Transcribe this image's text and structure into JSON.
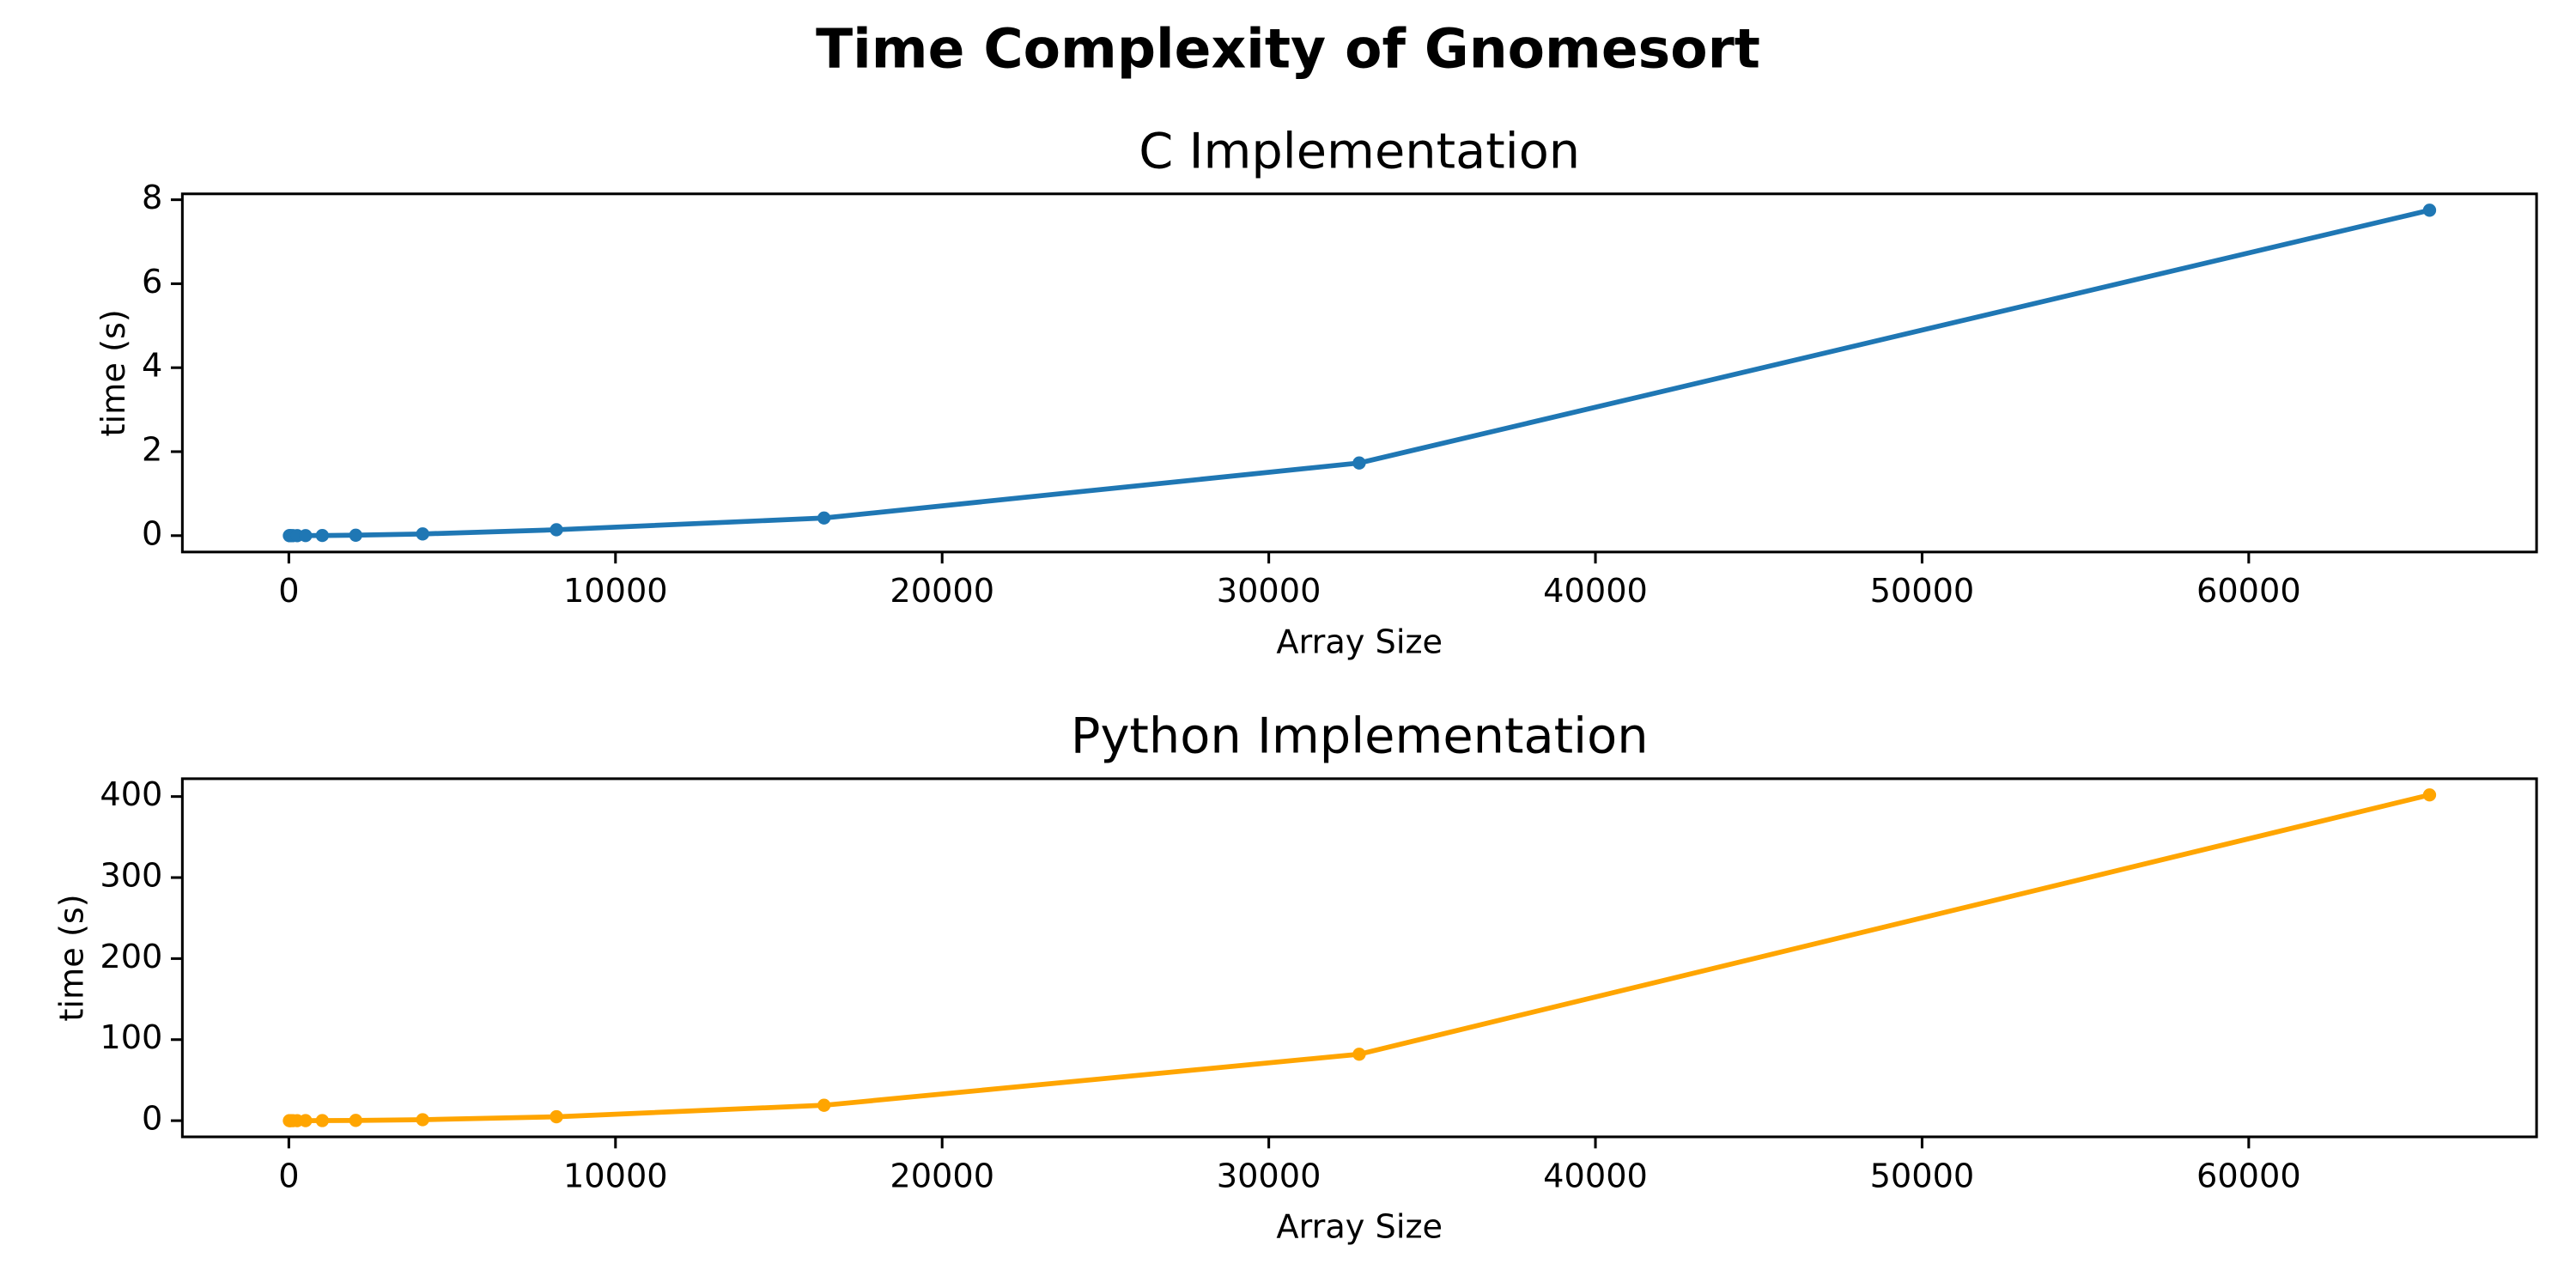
{
  "title": "Time Complexity of Gnomesort",
  "chart_data": [
    {
      "type": "line",
      "title": "C Implementation",
      "x_label": "Array Size",
      "y_label": "time (s)",
      "x": [
        16,
        32,
        64,
        128,
        256,
        512,
        1024,
        2048,
        4096,
        8192,
        16384,
        32768,
        65536
      ],
      "series": [
        {
          "color": "#1f77b4",
          "values": [
            0,
            0,
            0,
            0,
            0,
            0.001,
            0.003,
            0.01,
            0.04,
            0.14,
            0.42,
            1.73,
            7.75
          ]
        }
      ],
      "xlim": [
        -3260,
        68812
      ],
      "ylim": [
        -0.39,
        8.14
      ],
      "xticks": [
        0,
        10000,
        20000,
        30000,
        40000,
        50000,
        60000
      ],
      "yticks": [
        0,
        2,
        4,
        6,
        8
      ],
      "grid": false
    },
    {
      "type": "line",
      "title": "Python Implementation",
      "x_label": "Array Size",
      "y_label": "time (s)",
      "x": [
        16,
        32,
        64,
        128,
        256,
        512,
        1024,
        2048,
        4096,
        8192,
        16384,
        32768,
        65536
      ],
      "series": [
        {
          "color": "#ffa500",
          "values": [
            0,
            0,
            0,
            0,
            0.01,
            0.02,
            0.08,
            0.3,
            1.2,
            4.8,
            19,
            82,
            402
          ]
        }
      ],
      "xlim": [
        -3260,
        68812
      ],
      "ylim": [
        -20,
        422
      ],
      "xticks": [
        0,
        10000,
        20000,
        30000,
        40000,
        50000,
        60000
      ],
      "yticks": [
        0,
        100,
        200,
        300,
        400
      ],
      "grid": false
    }
  ]
}
